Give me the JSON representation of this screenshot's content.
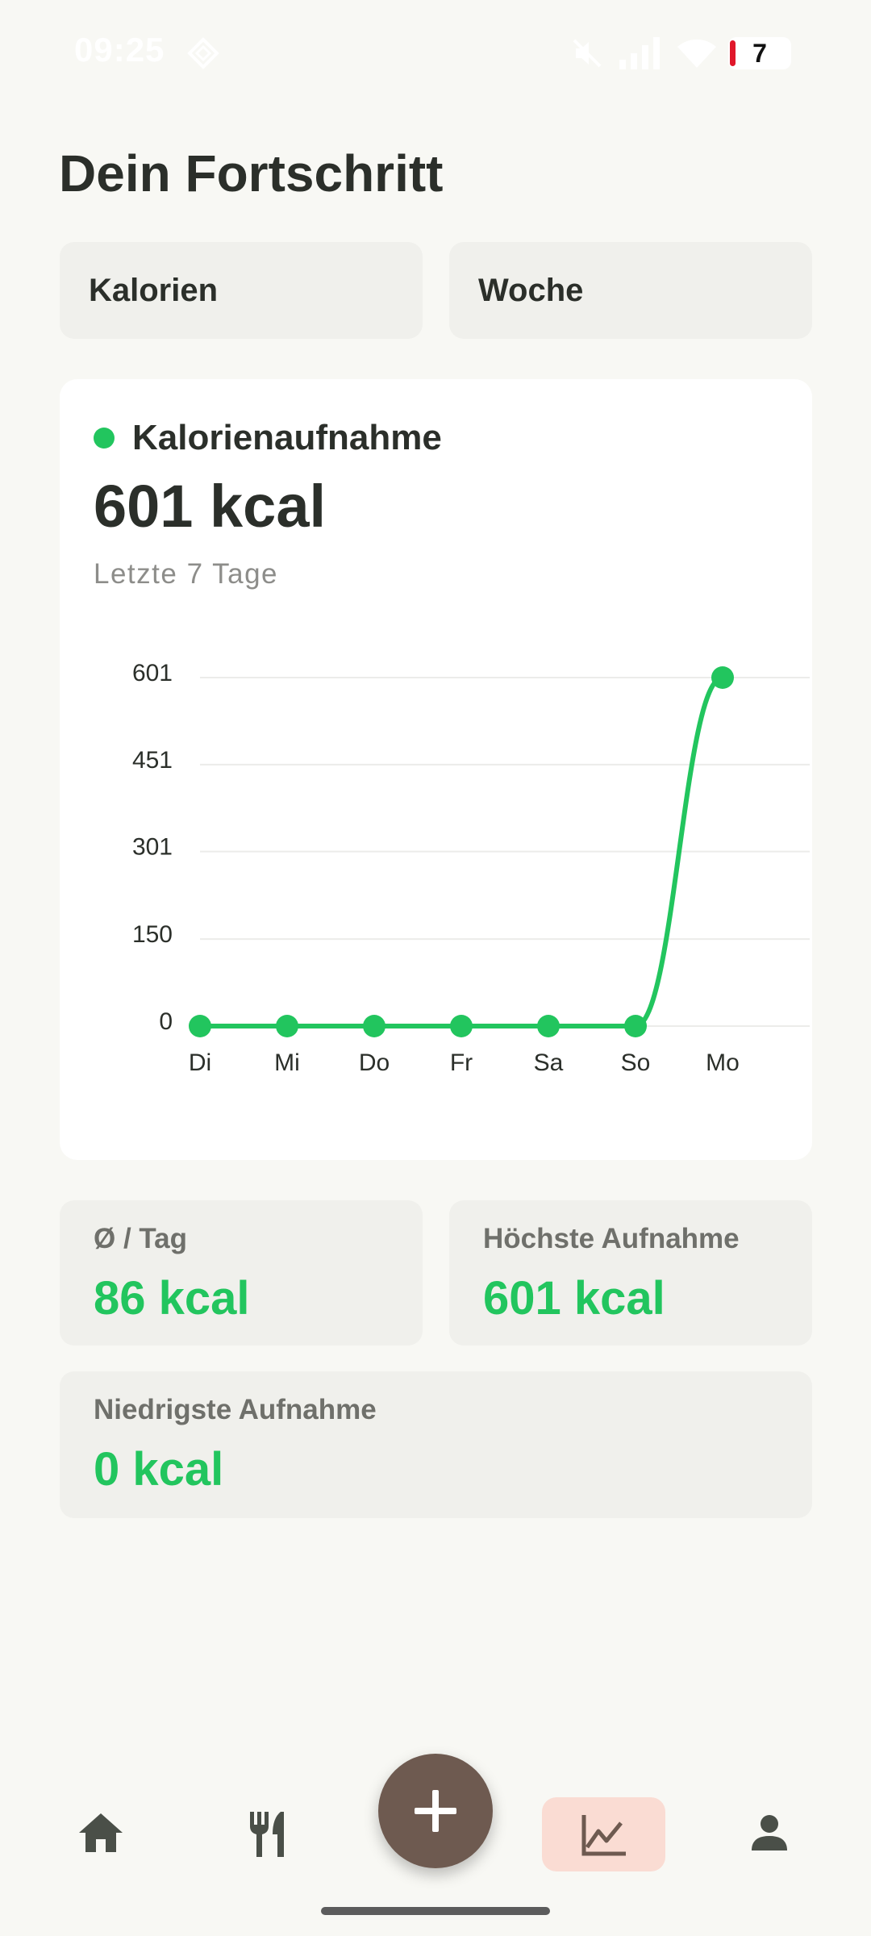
{
  "status_bar": {
    "time": "09:25",
    "battery_level": "7"
  },
  "page": {
    "title": "Dein Fortschritt"
  },
  "filters": {
    "metric": "Kalorien",
    "period": "Woche"
  },
  "chart_card": {
    "legend_label": "Kalorienaufnahme",
    "total_value": "601 kcal",
    "subtitle": "Letzte 7 Tage",
    "accent_color": "#22c55e"
  },
  "chart_data": {
    "type": "line",
    "categories": [
      "Di",
      "Mi",
      "Do",
      "Fr",
      "Sa",
      "So",
      "Mo"
    ],
    "series": [
      {
        "values": [
          0,
          0,
          0,
          0,
          0,
          0,
          601
        ]
      }
    ],
    "y_ticks": [
      "0",
      "150",
      "301",
      "451",
      "601"
    ],
    "ylim": [
      0,
      601
    ],
    "grid": true,
    "color": "#22c55e"
  },
  "stats": {
    "avg_label": "Ø / Tag",
    "avg_value": "86 kcal",
    "max_label": "Höchste Aufnahme",
    "max_value": "601 kcal",
    "min_label": "Niedrigste Aufnahme",
    "min_value": "0 kcal"
  },
  "bottom_nav": {
    "items": [
      {
        "icon": "home-icon",
        "active": false
      },
      {
        "icon": "fork-knife-icon",
        "active": false
      },
      {
        "icon": "plus-icon",
        "active": false
      },
      {
        "icon": "chart-icon",
        "active": true
      },
      {
        "icon": "person-icon",
        "active": false
      }
    ],
    "active_color": "#fadcd3",
    "fab_color": "#6e5a50"
  }
}
